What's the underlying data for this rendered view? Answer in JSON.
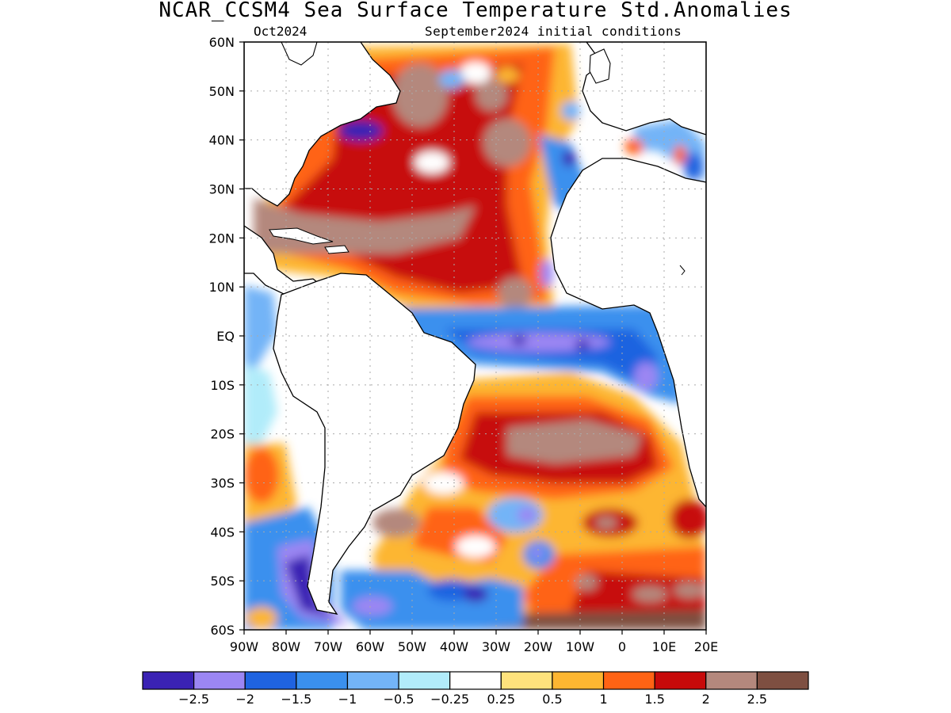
{
  "header": {
    "title": "NCAR_CCSM4 Sea Surface Temperature Std.Anomalies",
    "target_month": "Oct2024",
    "init": "September2024 initial conditions"
  },
  "axes": {
    "lat_labels": [
      "60N",
      "50N",
      "40N",
      "30N",
      "20N",
      "10N",
      "EQ",
      "10S",
      "20S",
      "30S",
      "40S",
      "50S",
      "60S"
    ],
    "lon_labels": [
      "90W",
      "80W",
      "70W",
      "60W",
      "50W",
      "40W",
      "30W",
      "20W",
      "10W",
      "0",
      "10E",
      "20E"
    ],
    "lat_range": [
      -60,
      60
    ],
    "lon_range": [
      -90,
      20
    ]
  },
  "colorbar": {
    "colors": [
      "#3a22b4",
      "#9b86f3",
      "#1f63e0",
      "#3a90ee",
      "#73b4f7",
      "#b1ecfa",
      "#ffffff",
      "#fee27c",
      "#fdb631",
      "#ff6314",
      "#c70a0a",
      "#b4887d",
      "#7e4f41"
    ],
    "labels": [
      "−2.5",
      "−2",
      "−1.5",
      "−1",
      "−0.5",
      "−0.25",
      "0.25",
      "0.5",
      "1",
      "1.5",
      "2",
      "2.5"
    ]
  }
}
